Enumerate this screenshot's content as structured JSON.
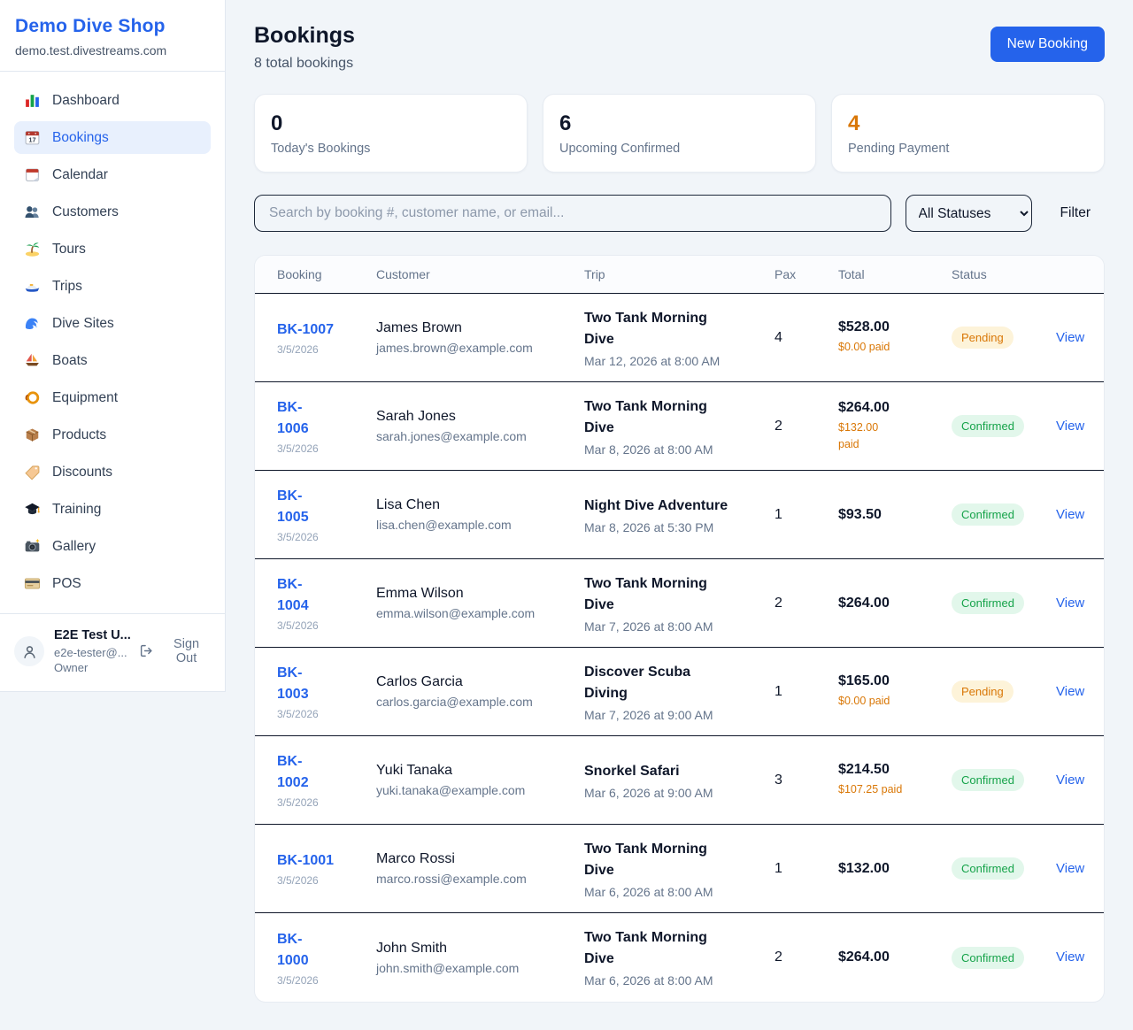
{
  "sidebar": {
    "brand": {
      "name": "Demo Dive Shop",
      "domain": "demo.test.divestreams.com"
    },
    "items": [
      {
        "label": "Dashboard",
        "icon": "bar-chart-icon",
        "active": false
      },
      {
        "label": "Bookings",
        "icon": "calendar-date-icon",
        "active": true
      },
      {
        "label": "Calendar",
        "icon": "tear-calendar-icon",
        "active": false
      },
      {
        "label": "Customers",
        "icon": "users-icon",
        "active": false
      },
      {
        "label": "Tours",
        "icon": "island-icon",
        "active": false
      },
      {
        "label": "Trips",
        "icon": "speedboat-icon",
        "active": false
      },
      {
        "label": "Dive Sites",
        "icon": "wave-icon",
        "active": false
      },
      {
        "label": "Boats",
        "icon": "sailboat-icon",
        "active": false
      },
      {
        "label": "Equipment",
        "icon": "dive-mask-icon",
        "active": false
      },
      {
        "label": "Products",
        "icon": "package-icon",
        "active": false
      },
      {
        "label": "Discounts",
        "icon": "tag-icon",
        "active": false
      },
      {
        "label": "Training",
        "icon": "graduation-cap-icon",
        "active": false
      },
      {
        "label": "Gallery",
        "icon": "camera-icon",
        "active": false
      },
      {
        "label": "POS",
        "icon": "credit-card-icon",
        "active": false
      }
    ],
    "user": {
      "name": "E2E Test U...",
      "email": "e2e-tester@...",
      "role": "Owner",
      "sign_out_label": "Sign Out"
    }
  },
  "header": {
    "title": "Bookings",
    "subtitle": "8 total bookings",
    "new_booking_label": "New Booking"
  },
  "stats": [
    {
      "value": "0",
      "label": "Today's Bookings",
      "value_color": "#0f172a"
    },
    {
      "value": "6",
      "label": "Upcoming Confirmed",
      "value_color": "#0f172a"
    },
    {
      "value": "4",
      "label": "Pending Payment",
      "value_color": "#d97706"
    }
  ],
  "filters": {
    "search_placeholder": "Search by booking #, customer name, or email...",
    "status_selected": "All Statuses",
    "filter_label": "Filter"
  },
  "table": {
    "columns": [
      "Booking",
      "Customer",
      "Trip",
      "Pax",
      "Total",
      "Status"
    ],
    "rows": [
      {
        "id_lines": [
          "BK-1007"
        ],
        "date": "3/5/2026",
        "customer": "James Brown",
        "email": "james.brown@example.com",
        "trip": "Two Tank Morning Dive",
        "trip_time": "Mar 12, 2026 at 8:00 AM",
        "pax": "4",
        "total": "$528.00",
        "paid_lines": [
          "$0.00 paid"
        ],
        "status": "Pending",
        "view_label": "View"
      },
      {
        "id_lines": [
          "BK-",
          "1006"
        ],
        "date": "3/5/2026",
        "customer": "Sarah Jones",
        "email": "sarah.jones@example.com",
        "trip": "Two Tank Morning Dive",
        "trip_time": "Mar 8, 2026 at 8:00 AM",
        "pax": "2",
        "total": "$264.00",
        "paid_lines": [
          "$132.00",
          "paid"
        ],
        "status": "Confirmed",
        "view_label": "View"
      },
      {
        "id_lines": [
          "BK-",
          "1005"
        ],
        "date": "3/5/2026",
        "customer": "Lisa Chen",
        "email": "lisa.chen@example.com",
        "trip": "Night Dive Adventure",
        "trip_time": "Mar 8, 2026 at 5:30 PM",
        "pax": "1",
        "total": "$93.50",
        "paid_lines": [],
        "status": "Confirmed",
        "view_label": "View"
      },
      {
        "id_lines": [
          "BK-",
          "1004"
        ],
        "date": "3/5/2026",
        "customer": "Emma Wilson",
        "email": "emma.wilson@example.com",
        "trip": "Two Tank Morning Dive",
        "trip_time": "Mar 7, 2026 at 8:00 AM",
        "pax": "2",
        "total": "$264.00",
        "paid_lines": [],
        "status": "Confirmed",
        "view_label": "View"
      },
      {
        "id_lines": [
          "BK-",
          "1003"
        ],
        "date": "3/5/2026",
        "customer": "Carlos Garcia",
        "email": "carlos.garcia@example.com",
        "trip": "Discover Scuba Diving",
        "trip_time": "Mar 7, 2026 at 9:00 AM",
        "pax": "1",
        "total": "$165.00",
        "paid_lines": [
          "$0.00 paid"
        ],
        "status": "Pending",
        "view_label": "View"
      },
      {
        "id_lines": [
          "BK-",
          "1002"
        ],
        "date": "3/5/2026",
        "customer": "Yuki Tanaka",
        "email": "yuki.tanaka@example.com",
        "trip": "Snorkel Safari",
        "trip_time": "Mar 6, 2026 at 9:00 AM",
        "pax": "3",
        "total": "$214.50",
        "paid_lines": [
          "$107.25 paid"
        ],
        "status": "Confirmed",
        "view_label": "View"
      },
      {
        "id_lines": [
          "BK-1001"
        ],
        "date": "3/5/2026",
        "customer": "Marco Rossi",
        "email": "marco.rossi@example.com",
        "trip": "Two Tank Morning Dive",
        "trip_time": "Mar 6, 2026 at 8:00 AM",
        "pax": "1",
        "total": "$132.00",
        "paid_lines": [],
        "status": "Confirmed",
        "view_label": "View"
      },
      {
        "id_lines": [
          "BK-",
          "1000"
        ],
        "date": "3/5/2026",
        "customer": "John Smith",
        "email": "john.smith@example.com",
        "trip": "Two Tank Morning Dive",
        "trip_time": "Mar 6, 2026 at 8:00 AM",
        "pax": "2",
        "total": "$264.00",
        "paid_lines": [],
        "status": "Confirmed",
        "view_label": "View"
      }
    ]
  },
  "colors": {
    "accent_blue": "#2563eb",
    "pending_orange": "#d97706",
    "confirmed_green": "#16a34a",
    "active_nav_bg": "#e8f0fd"
  }
}
